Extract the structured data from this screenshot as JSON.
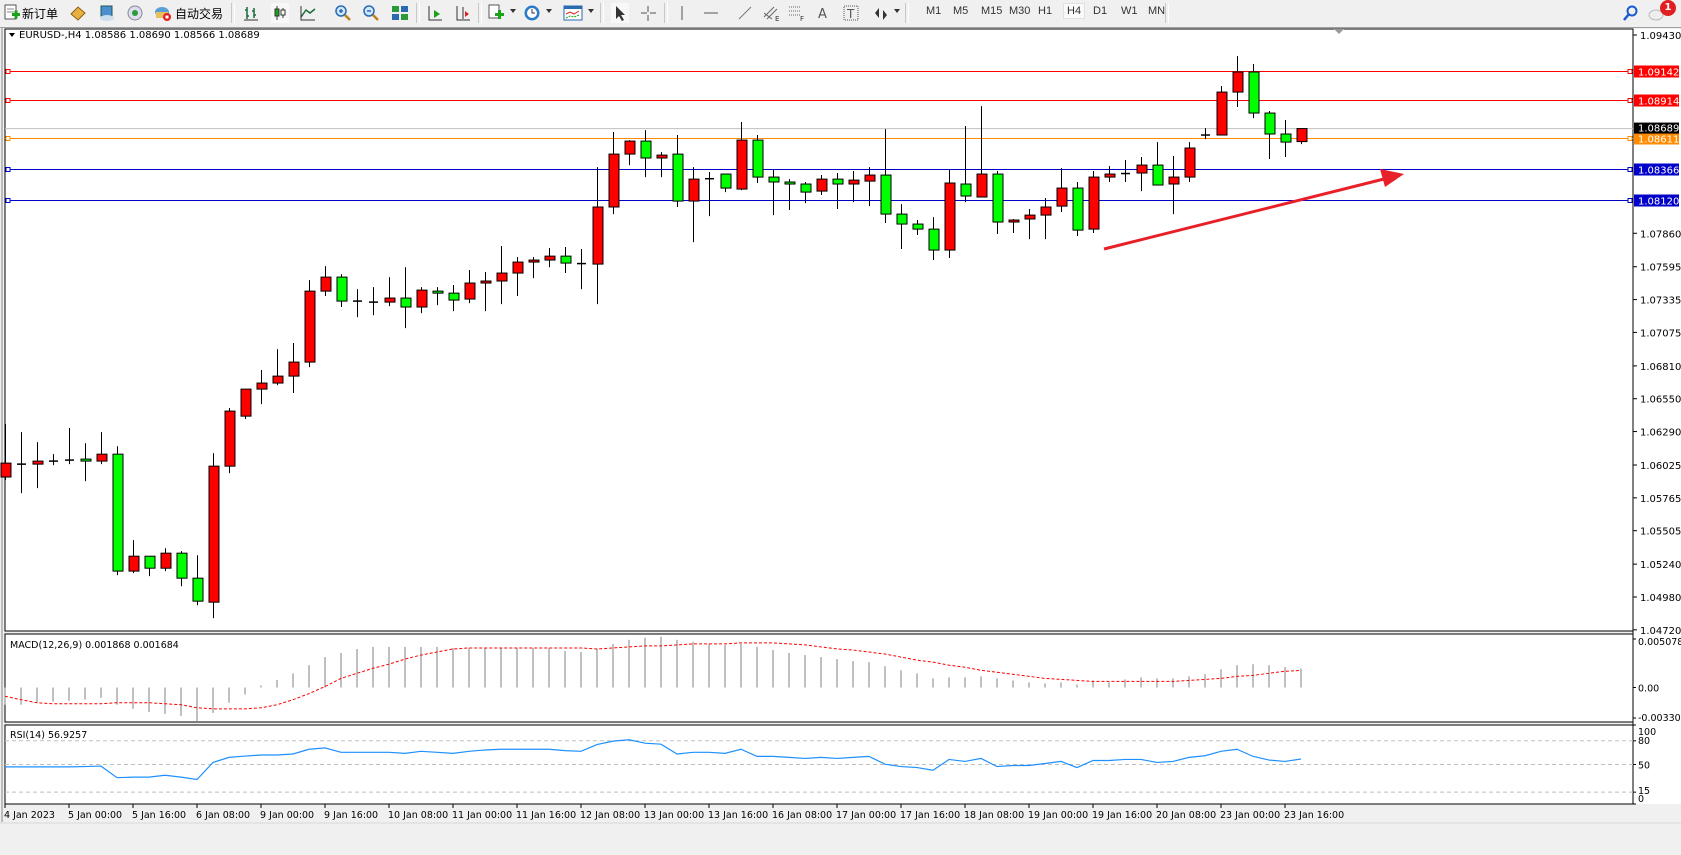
{
  "toolbar": {
    "new_order_label": "新订单",
    "auto_trade_label": "自动交易",
    "timeframes": [
      "M1",
      "M5",
      "M15",
      "M30",
      "H1",
      "H4",
      "D1",
      "W1",
      "MN"
    ],
    "selected_timeframe": "H4",
    "notification_count": "1",
    "icons": [
      "new-order-icon",
      "expert-navigator-icon",
      "data-window-icon",
      "signals-icon",
      "auto-trading-icon",
      "bar-chart-icon",
      "candlestick-icon",
      "line-chart-icon",
      "zoom-in-icon",
      "zoom-out-icon",
      "tile-windows-icon",
      "auto-scroll-icon",
      "chart-shift-icon",
      "new-chart-icon",
      "periods-clock-icon",
      "indicators-icon",
      "cursor-icon",
      "crosshair-icon",
      "vertical-line-icon",
      "horizontal-line-icon",
      "trendline-icon",
      "equidistant-channel-icon",
      "fibonacci-icon",
      "text-icon",
      "text-label-icon",
      "arrows-icon",
      "search-icon",
      "chat-icon"
    ]
  },
  "chart": {
    "header": "EURUSD-,H4  1.08586 1.08690 1.08566 1.08689",
    "symbol": "EURUSD-",
    "timeframe": "H4",
    "bull_color": "#ff0000",
    "bear_color": "#00ff00",
    "price_axis_labels": [
      "1.09430",
      "1.07860",
      "1.07595",
      "1.07335",
      "1.07075",
      "1.06810",
      "1.06550",
      "1.06290",
      "1.06025",
      "1.05765",
      "1.05505",
      "1.05240",
      "1.04980",
      "1.04720"
    ],
    "current_price": {
      "value": "1.08689",
      "color": "#000000"
    },
    "horizontal_lines": [
      {
        "value": "1.09142",
        "color": "#ff0000"
      },
      {
        "value": "1.08914",
        "color": "#ff0000"
      },
      {
        "value": "1.08611",
        "color": "#ff8c00"
      },
      {
        "value": "1.08366",
        "color": "#0000c8"
      },
      {
        "value": "1.08120",
        "color": "#0000c8"
      }
    ],
    "arrow_color": "#e8202a",
    "time_axis_labels": [
      "4 Jan 2023",
      "5 Jan 00:00",
      "5 Jan 16:00",
      "6 Jan 08:00",
      "9 Jan 00:00",
      "9 Jan 16:00",
      "10 Jan 08:00",
      "11 Jan 00:00",
      "11 Jan 16:00",
      "12 Jan 08:00",
      "13 Jan 00:00",
      "13 Jan 16:00",
      "16 Jan 08:00",
      "17 Jan 00:00",
      "17 Jan 16:00",
      "18 Jan 08:00",
      "19 Jan 00:00",
      "19 Jan 16:00",
      "20 Jan 08:00",
      "23 Jan 00:00",
      "23 Jan 16:00"
    ]
  },
  "chart_data": [
    {
      "type": "candlestick",
      "name": "EURUSD-,H4",
      "ylim": [
        1.0472,
        1.0943
      ],
      "ohlc": [
        [
          1.0593,
          1.06349,
          1.05905,
          1.0604
        ],
        [
          1.06032,
          1.06285,
          1.05802,
          1.06032
        ],
        [
          1.06032,
          1.06206,
          1.05842,
          1.06056
        ],
        [
          1.0605,
          1.06111,
          1.06024,
          1.06056
        ],
        [
          1.06056,
          1.06318,
          1.06032,
          1.06064
        ],
        [
          1.06072,
          1.06198,
          1.05897,
          1.06056
        ],
        [
          1.06056,
          1.06285,
          1.06032,
          1.06111
        ],
        [
          1.06111,
          1.06174,
          1.05153,
          1.05185
        ],
        [
          1.05185,
          1.0543,
          1.05169,
          1.05303
        ],
        [
          1.05303,
          1.05303,
          1.05145,
          1.05208
        ],
        [
          1.05208,
          1.05366,
          1.05185,
          1.05327
        ],
        [
          1.05327,
          1.05343,
          1.05065,
          1.05129
        ],
        [
          1.05129,
          1.05311,
          1.04915,
          1.04947
        ],
        [
          1.04939,
          1.06119,
          1.04813,
          1.06016
        ],
        [
          1.06016,
          1.06476,
          1.05961,
          1.06452
        ],
        [
          1.06412,
          1.06626,
          1.06389,
          1.06626
        ],
        [
          1.06626,
          1.06777,
          1.06507,
          1.06674
        ],
        [
          1.06674,
          1.06943,
          1.06658,
          1.06729
        ],
        [
          1.06729,
          1.06991,
          1.06595,
          1.0684
        ],
        [
          1.0684,
          1.07489,
          1.068,
          1.07402
        ],
        [
          1.07402,
          1.076,
          1.07363,
          1.07513
        ],
        [
          1.07513,
          1.07537,
          1.07276,
          1.07323
        ],
        [
          1.07323,
          1.07418,
          1.07196,
          1.07318
        ],
        [
          1.07315,
          1.07434,
          1.07212,
          1.0731
        ],
        [
          1.07315,
          1.07513,
          1.07283,
          1.07347
        ],
        [
          1.07347,
          1.07592,
          1.07109,
          1.07276
        ],
        [
          1.07276,
          1.07434,
          1.07228,
          1.0741
        ],
        [
          1.07402,
          1.07434,
          1.07291,
          1.07386
        ],
        [
          1.07386,
          1.0745,
          1.07244,
          1.07331
        ],
        [
          1.07339,
          1.07569,
          1.07307,
          1.07466
        ],
        [
          1.07466,
          1.07553,
          1.07244,
          1.07482
        ],
        [
          1.07482,
          1.07759,
          1.07299,
          1.07545
        ],
        [
          1.07545,
          1.07672,
          1.07363,
          1.07632
        ],
        [
          1.07632,
          1.07672,
          1.07505,
          1.07648
        ],
        [
          1.07648,
          1.07743,
          1.07592,
          1.07679
        ],
        [
          1.07679,
          1.07751,
          1.07545,
          1.07624
        ],
        [
          1.0762,
          1.07735,
          1.07418,
          1.07616
        ],
        [
          1.07616,
          1.08384,
          1.07299,
          1.08068
        ],
        [
          1.08068,
          1.08662,
          1.08012,
          1.08487
        ],
        [
          1.08487,
          1.08598,
          1.084,
          1.0859
        ],
        [
          1.0859,
          1.08677,
          1.08305,
          1.08456
        ],
        [
          1.08456,
          1.08503,
          1.08305,
          1.08479
        ],
        [
          1.08487,
          1.08638,
          1.08068,
          1.08115
        ],
        [
          1.08115,
          1.08384,
          1.0779,
          1.08289
        ],
        [
          1.08289,
          1.08345,
          1.07996,
          1.08292
        ],
        [
          1.08329,
          1.08329,
          1.08186,
          1.08218
        ],
        [
          1.0821,
          1.08741,
          1.08202,
          1.08598
        ],
        [
          1.08598,
          1.08638,
          1.08258,
          1.08305
        ],
        [
          1.08305,
          1.08368,
          1.08004,
          1.08266
        ],
        [
          1.08266,
          1.08289,
          1.08044,
          1.0825
        ],
        [
          1.0825,
          1.08266,
          1.08099,
          1.08186
        ],
        [
          1.08194,
          1.08321,
          1.08163,
          1.08289
        ],
        [
          1.08289,
          1.08337,
          1.08052,
          1.0825
        ],
        [
          1.0825,
          1.08353,
          1.08107,
          1.08281
        ],
        [
          1.08273,
          1.08384,
          1.08075,
          1.08321
        ],
        [
          1.08321,
          1.08685,
          1.07941,
          1.08012
        ],
        [
          1.08012,
          1.08091,
          1.07735,
          1.07933
        ],
        [
          1.07933,
          1.07965,
          1.07846,
          1.07893
        ],
        [
          1.07893,
          1.07988,
          1.07648,
          1.07727
        ],
        [
          1.07727,
          1.08368,
          1.07664,
          1.08258
        ],
        [
          1.0825,
          1.08709,
          1.08107,
          1.08155
        ],
        [
          1.08147,
          1.08867,
          1.08147,
          1.08329
        ],
        [
          1.08329,
          1.08353,
          1.07854,
          1.07949
        ],
        [
          1.07949,
          1.07973,
          1.07862,
          1.07965
        ],
        [
          1.07973,
          1.08052,
          1.07814,
          1.08004
        ],
        [
          1.08004,
          1.08139,
          1.07814,
          1.08068
        ],
        [
          1.08075,
          1.08376,
          1.08028,
          1.08218
        ],
        [
          1.08218,
          1.08266,
          1.07838,
          1.07885
        ],
        [
          1.07893,
          1.08353,
          1.07862,
          1.08305
        ],
        [
          1.08305,
          1.08392,
          1.08266,
          1.08329
        ],
        [
          1.08329,
          1.0844,
          1.08266,
          1.08333
        ],
        [
          1.08337,
          1.08464,
          1.08194,
          1.084
        ],
        [
          1.084,
          1.08582,
          1.08242,
          1.08242
        ],
        [
          1.0825,
          1.08472,
          1.08012,
          1.08305
        ],
        [
          1.08305,
          1.08582,
          1.08266,
          1.08535
        ],
        [
          1.0863,
          1.08693,
          1.08606,
          1.08638
        ],
        [
          1.08638,
          1.09026,
          1.08638,
          1.08978
        ],
        [
          1.08978,
          1.09263,
          1.0886,
          1.09137
        ],
        [
          1.09137,
          1.092,
          1.08772,
          1.08812
        ],
        [
          1.08812,
          1.08828,
          1.08448,
          1.08646
        ],
        [
          1.08646,
          1.08757,
          1.08464,
          1.08582
        ],
        [
          1.08586,
          1.0869,
          1.08566,
          1.08689
        ]
      ]
    },
    {
      "type": "bar",
      "title": "MACD(12,26,9) 0.001868 0.001684",
      "ylim": [
        -0.003301,
        0.005078
      ],
      "axis_labels": [
        "0.005078",
        "0.00",
        "-0.003301"
      ],
      "histogram_color": "#c0c0c0",
      "signal_color": "#ff0000",
      "histogram": [
        -0.0017,
        -0.0017,
        -0.0015,
        -0.0014,
        -0.0013,
        -0.0012,
        -0.001,
        -0.0017,
        -0.0021,
        -0.0024,
        -0.0026,
        -0.0028,
        -0.0033,
        -0.0025,
        -0.0015,
        -0.0007,
        0.0002,
        0.00075,
        0.0014,
        0.0022,
        0.003,
        0.0034,
        0.0038,
        0.004,
        0.004,
        0.004,
        0.004,
        0.004,
        0.0039,
        0.0039,
        0.0039,
        0.0039,
        0.0039,
        0.0039,
        0.0039,
        0.0036,
        0.0035,
        0.0038,
        0.0043,
        0.0047,
        0.0049,
        0.005,
        0.0047,
        0.0045,
        0.0043,
        0.0042,
        0.0043,
        0.004,
        0.0037,
        0.0034,
        0.0032,
        0.003,
        0.0028,
        0.0026,
        0.0025,
        0.0021,
        0.0017,
        0.0014,
        0.0009,
        0.001,
        0.001,
        0.0011,
        0.0009,
        0.0007,
        0.0005,
        0.0004,
        0.0005,
        0.0003,
        0.0007,
        0.0005,
        0.0008,
        0.001,
        0.0009,
        0.0009,
        0.0011,
        0.0013,
        0.0018,
        0.0022,
        0.0023,
        0.0022,
        0.002,
        0.001868
      ],
      "signal": [
        -0.00086,
        -0.0012,
        -0.0015,
        -0.0016,
        -0.0016,
        -0.0016,
        -0.0016,
        -0.0015,
        -0.0015,
        -0.0015,
        -0.0016,
        -0.0017,
        -0.002,
        -0.0021,
        -0.0021,
        -0.0021,
        -0.002,
        -0.0017,
        -0.0012,
        -0.0006,
        0.0001,
        0.0009,
        0.0014,
        0.0019,
        0.0023,
        0.0028,
        0.0032,
        0.0035,
        0.0038,
        0.0039,
        0.0039,
        0.0039,
        0.0039,
        0.0039,
        0.0039,
        0.0039,
        0.0039,
        0.0038,
        0.0039,
        0.004,
        0.0041,
        0.0041,
        0.0042,
        0.0043,
        0.0043,
        0.0043,
        0.0044,
        0.0044,
        0.0044,
        0.0043,
        0.0042,
        0.004,
        0.0038,
        0.0037,
        0.0035,
        0.0033,
        0.003,
        0.0027,
        0.0025,
        0.0022,
        0.002,
        0.0017,
        0.0015,
        0.0013,
        0.0011,
        0.0009,
        0.0008,
        0.0007,
        0.0006,
        0.0006,
        0.0006,
        0.0006,
        0.0006,
        0.0006,
        0.0007,
        0.0008,
        0.0009,
        0.0011,
        0.0012,
        0.0014,
        0.0016,
        0.001684
      ]
    },
    {
      "type": "line",
      "title": "RSI(14) 56.9257",
      "ylim": [
        0,
        100
      ],
      "axis_labels": [
        "100",
        "80",
        "50",
        "15",
        "0"
      ],
      "levels": [
        80,
        50,
        15
      ],
      "line_color": "#1e90ff",
      "values": [
        47,
        47,
        47,
        47,
        47,
        47.4,
        48,
        33.3,
        34,
        34,
        36.4,
        34,
        31,
        52.6,
        59,
        60.7,
        62,
        62,
        63.3,
        69.3,
        71,
        65.4,
        65.4,
        65.4,
        65.4,
        64.1,
        66.7,
        65.4,
        64.1,
        66.7,
        68.4,
        69.3,
        69.3,
        69.3,
        69.3,
        67.6,
        66.7,
        75.3,
        79.6,
        81.3,
        77,
        75.7,
        63.3,
        65.4,
        65.4,
        64.1,
        69.3,
        60.3,
        60.3,
        59,
        57.7,
        59,
        57.7,
        59,
        60.3,
        50.4,
        47.4,
        46.1,
        42.7,
        56.4,
        53.9,
        57.7,
        47.4,
        48.7,
        48.7,
        51.3,
        53.9,
        46.1,
        55.1,
        55.1,
        56.4,
        56.4,
        52.6,
        53.9,
        59,
        61.1,
        66.7,
        69.3,
        60.3,
        55.6,
        53.9,
        56.9257
      ]
    }
  ]
}
